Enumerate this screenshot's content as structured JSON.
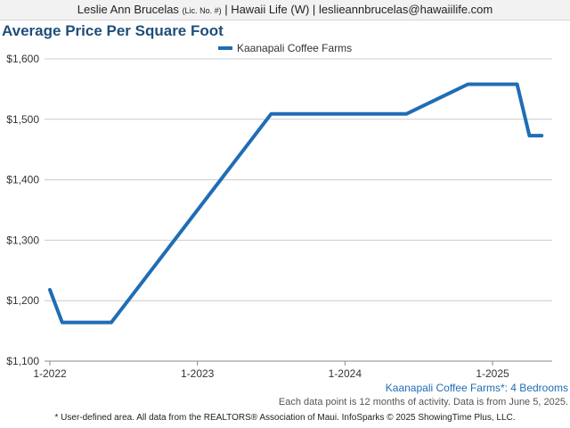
{
  "header": {
    "agent_name": "Leslie Ann Brucelas",
    "license": "(Lic. No. #)",
    "brokerage": "| Hawaii Life (W) |",
    "email": "leslieannbrucelas@hawaiilife.com"
  },
  "colors": {
    "series_line": "#1f6db5",
    "title": "#1f4e79",
    "grid": "#cccccc"
  },
  "chart_data": {
    "type": "line",
    "title": "Average Price Per Square Foot",
    "xlabel": "",
    "ylabel": "",
    "ylim": [
      1100,
      1600
    ],
    "yticks": [
      1100,
      1200,
      1300,
      1400,
      1500,
      1600
    ],
    "ytick_labels": [
      "$1,100",
      "$1,200",
      "$1,300",
      "$1,400",
      "$1,500",
      "$1,600"
    ],
    "xticks": [
      "2022-01",
      "2023-01",
      "2024-01",
      "2025-01"
    ],
    "xtick_labels": [
      "1-2022",
      "1-2023",
      "1-2024",
      "1-2025"
    ],
    "xlim": [
      "2022-01",
      "2025-05"
    ],
    "grid": "horizontal",
    "legend": "top-center",
    "series": [
      {
        "name": "Kaanapali Coffee Farms",
        "x": [
          "2022-01",
          "2022-02",
          "2022-06",
          "2023-07",
          "2024-06",
          "2024-11",
          "2025-03",
          "2025-04",
          "2025-05"
        ],
        "values": [
          1218,
          1164,
          1164,
          1509,
          1509,
          1558,
          1558,
          1473,
          1473
        ]
      }
    ]
  },
  "footer": {
    "series_label": "Kaanapali Coffee Farms*: 4 Bedrooms",
    "note": "Each data point is 12 months of activity. Data is from June 5, 2025.",
    "credit": "* User-defined area. All data from the REALTORS® Association of Maui. InfoSparks © 2025 ShowingTime Plus, LLC."
  }
}
